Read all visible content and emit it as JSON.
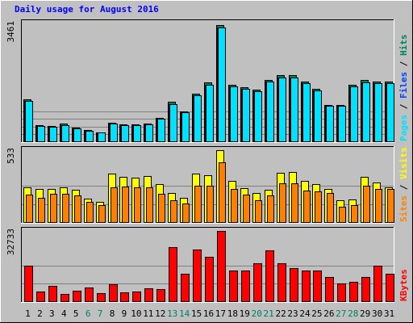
{
  "title": "Daily usage for August 2016",
  "colors": {
    "frame_bg": "#c0c0c0",
    "plot_bg": "#c0c0c0",
    "title": "#0000ff",
    "hits": "#00805c",
    "files": "#0040ff",
    "pages": "#00e0ff",
    "visits": "#ffff00",
    "sites": "#ff8000",
    "kbytes": "#ff0000",
    "weekend_label": "#00805c",
    "weekday_label": "#000000"
  },
  "chart_data": [
    {
      "type": "bar",
      "panel": "hits",
      "y_max_label": "3461",
      "ylim": [
        0,
        3461
      ],
      "legend": [
        {
          "name": "Pages",
          "color": "#00e0ff"
        },
        {
          "name": "Files",
          "color": "#0040ff"
        },
        {
          "name": "Hits",
          "color": "#00805c"
        }
      ],
      "categories": [
        "1",
        "2",
        "3",
        "4",
        "5",
        "6",
        "7",
        "8",
        "9",
        "10",
        "11",
        "12",
        "13",
        "14",
        "15",
        "16",
        "17",
        "18",
        "19",
        "20",
        "21",
        "22",
        "23",
        "24",
        "25",
        "26",
        "27",
        "28",
        "29",
        "30",
        "31"
      ],
      "series": [
        {
          "name": "Hits",
          "values": [
            1220,
            460,
            450,
            510,
            400,
            320,
            270,
            540,
            490,
            500,
            520,
            680,
            1150,
            880,
            1400,
            1710,
            3380,
            1650,
            1570,
            1500,
            1800,
            1920,
            1920,
            1740,
            1520,
            1070,
            1060,
            1650,
            1790,
            1750,
            1750
          ]
        },
        {
          "name": "Files",
          "values": [
            1180,
            440,
            430,
            480,
            380,
            300,
            250,
            510,
            460,
            470,
            490,
            660,
            1080,
            850,
            1340,
            1650,
            3320,
            1600,
            1530,
            1460,
            1740,
            1860,
            1860,
            1690,
            1480,
            1040,
            1030,
            1600,
            1730,
            1700,
            1690
          ]
        },
        {
          "name": "Pages",
          "values": [
            1180,
            440,
            430,
            480,
            380,
            300,
            250,
            510,
            460,
            470,
            490,
            660,
            1080,
            850,
            1340,
            1650,
            3320,
            1600,
            1530,
            1460,
            1740,
            1860,
            1860,
            1690,
            1480,
            1040,
            1030,
            1600,
            1730,
            1700,
            1690
          ]
        }
      ]
    },
    {
      "type": "bar",
      "panel": "visits",
      "y_max_label": "533",
      "ylim": [
        0,
        533
      ],
      "legend": [
        {
          "name": "Sites",
          "color": "#ff8000"
        },
        {
          "name": "Visits",
          "color": "#ffff00"
        }
      ],
      "categories": [
        "1",
        "2",
        "3",
        "4",
        "5",
        "6",
        "7",
        "8",
        "9",
        "10",
        "11",
        "12",
        "13",
        "14",
        "15",
        "16",
        "17",
        "18",
        "19",
        "20",
        "21",
        "22",
        "23",
        "24",
        "25",
        "26",
        "27",
        "28",
        "29",
        "30",
        "31"
      ],
      "series": [
        {
          "name": "Visits",
          "values": [
            255,
            240,
            240,
            255,
            235,
            170,
            150,
            355,
            330,
            325,
            335,
            280,
            215,
            180,
            355,
            345,
            530,
            300,
            250,
            215,
            235,
            360,
            365,
            300,
            280,
            245,
            160,
            165,
            330,
            290,
            255
          ]
        },
        {
          "name": "Sites",
          "values": [
            200,
            175,
            205,
            210,
            195,
            150,
            125,
            255,
            260,
            255,
            255,
            210,
            160,
            135,
            265,
            265,
            440,
            240,
            200,
            160,
            195,
            285,
            285,
            230,
            225,
            215,
            115,
            125,
            265,
            240,
            245
          ]
        }
      ]
    },
    {
      "type": "bar",
      "panel": "kbytes",
      "y_max_label": "32733",
      "ylim": [
        0,
        32733
      ],
      "legend": [
        {
          "name": "KBytes",
          "color": "#ff0000"
        }
      ],
      "categories": [
        "1",
        "2",
        "3",
        "4",
        "5",
        "6",
        "7",
        "8",
        "9",
        "10",
        "11",
        "12",
        "13",
        "14",
        "15",
        "16",
        "17",
        "18",
        "19",
        "20",
        "21",
        "22",
        "23",
        "24",
        "25",
        "26",
        "27",
        "28",
        "29",
        "30",
        "31"
      ],
      "series": [
        {
          "name": "KBytes",
          "values": [
            16400,
            4400,
            7000,
            3500,
            5000,
            6300,
            3600,
            7800,
            4200,
            4500,
            6000,
            5400,
            25000,
            12700,
            23700,
            20500,
            32300,
            14200,
            14200,
            17300,
            23300,
            17600,
            15200,
            14200,
            14200,
            11300,
            8300,
            9000,
            11300,
            16500,
            12800
          ]
        }
      ]
    }
  ],
  "x_labels": [
    {
      "text": "1",
      "weekend": false
    },
    {
      "text": "2",
      "weekend": false
    },
    {
      "text": "3",
      "weekend": false
    },
    {
      "text": "4",
      "weekend": false
    },
    {
      "text": "5",
      "weekend": false
    },
    {
      "text": "6",
      "weekend": true
    },
    {
      "text": "7",
      "weekend": true
    },
    {
      "text": "8",
      "weekend": false
    },
    {
      "text": "9",
      "weekend": false
    },
    {
      "text": "10",
      "weekend": false
    },
    {
      "text": "11",
      "weekend": false
    },
    {
      "text": "12",
      "weekend": false
    },
    {
      "text": "13",
      "weekend": true
    },
    {
      "text": "14",
      "weekend": true
    },
    {
      "text": "15",
      "weekend": false
    },
    {
      "text": "16",
      "weekend": false
    },
    {
      "text": "17",
      "weekend": false
    },
    {
      "text": "18",
      "weekend": false
    },
    {
      "text": "19",
      "weekend": false
    },
    {
      "text": "20",
      "weekend": true
    },
    {
      "text": "21",
      "weekend": true
    },
    {
      "text": "22",
      "weekend": false
    },
    {
      "text": "23",
      "weekend": false
    },
    {
      "text": "24",
      "weekend": false
    },
    {
      "text": "25",
      "weekend": false
    },
    {
      "text": "26",
      "weekend": false
    },
    {
      "text": "27",
      "weekend": true
    },
    {
      "text": "28",
      "weekend": true
    },
    {
      "text": "29",
      "weekend": false
    },
    {
      "text": "30",
      "weekend": false
    },
    {
      "text": "31",
      "weekend": false
    }
  ]
}
